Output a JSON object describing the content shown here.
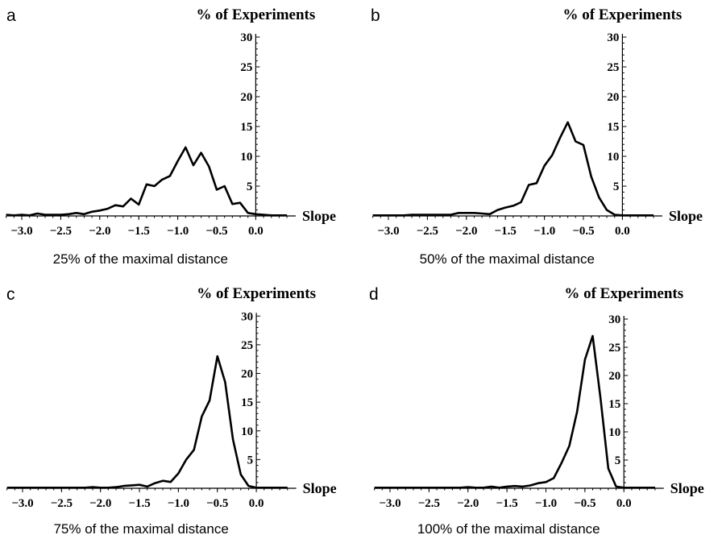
{
  "chart_data": [
    {
      "type": "line",
      "panel_label": "a",
      "ylabel": "% of Experiments",
      "xlabel": "Slope",
      "caption": "25% of the maximal distance",
      "xlim": [
        -3.2,
        0.45
      ],
      "ylim": [
        0,
        30
      ],
      "xticks": [
        "−3.0",
        "−2.5",
        "−2.0",
        "−1.5",
        "−1.0",
        "−0.5",
        "0.0"
      ],
      "yticks": [
        "5",
        "10",
        "15",
        "20",
        "25",
        "30"
      ],
      "x": [
        -3.2,
        -3.1,
        -3.0,
        -2.9,
        -2.8,
        -2.7,
        -2.6,
        -2.5,
        -2.4,
        -2.3,
        -2.2,
        -2.1,
        -2.0,
        -1.9,
        -1.8,
        -1.7,
        -1.6,
        -1.5,
        -1.4,
        -1.3,
        -1.2,
        -1.1,
        -1.0,
        -0.9,
        -0.8,
        -0.7,
        -0.6,
        -0.5,
        -0.4,
        -0.3,
        -0.2,
        -0.1,
        0.0,
        0.1,
        0.2,
        0.3,
        0.4
      ],
      "y": [
        0.2,
        0.1,
        0.2,
        0.1,
        0.4,
        0.2,
        0.2,
        0.2,
        0.3,
        0.5,
        0.3,
        0.7,
        0.9,
        1.2,
        1.8,
        1.6,
        2.9,
        1.9,
        5.3,
        5.0,
        6.1,
        6.7,
        9.2,
        11.5,
        8.5,
        10.6,
        8.3,
        4.4,
        5.0,
        2.0,
        2.2,
        0.5,
        0.3,
        0.2,
        0.1,
        0.1,
        0.1
      ]
    },
    {
      "type": "line",
      "panel_label": "b",
      "ylabel": "% of Experiments",
      "xlabel": "Slope",
      "caption": "50% of the maximal distance",
      "xlim": [
        -3.2,
        0.45
      ],
      "ylim": [
        0,
        30
      ],
      "xticks": [
        "−3.0",
        "−2.5",
        "−2.0",
        "−1.5",
        "−1.0",
        "−0.5",
        "0.0"
      ],
      "yticks": [
        "5",
        "10",
        "15",
        "20",
        "25",
        "30"
      ],
      "x": [
        -3.2,
        -3.1,
        -3.0,
        -2.9,
        -2.8,
        -2.7,
        -2.6,
        -2.5,
        -2.4,
        -2.3,
        -2.2,
        -2.1,
        -2.0,
        -1.9,
        -1.8,
        -1.7,
        -1.6,
        -1.5,
        -1.4,
        -1.3,
        -1.2,
        -1.1,
        -1.0,
        -0.9,
        -0.8,
        -0.7,
        -0.6,
        -0.5,
        -0.4,
        -0.3,
        -0.2,
        -0.1,
        0.0,
        0.1,
        0.2,
        0.3,
        0.4
      ],
      "y": [
        0.1,
        0.1,
        0.1,
        0.1,
        0.1,
        0.2,
        0.2,
        0.2,
        0.2,
        0.2,
        0.2,
        0.5,
        0.5,
        0.5,
        0.4,
        0.3,
        1.0,
        1.4,
        1.7,
        2.3,
        5.2,
        5.5,
        8.4,
        10.2,
        13.1,
        15.7,
        12.5,
        11.9,
        6.6,
        3.1,
        1.0,
        0.2,
        0.1,
        0.1,
        0.1,
        0.1,
        0.1
      ]
    },
    {
      "type": "line",
      "panel_label": "c",
      "ylabel": "% of Experiments",
      "xlabel": "Slope",
      "caption": "75% of the maximal distance",
      "xlim": [
        -3.2,
        0.45
      ],
      "ylim": [
        0,
        30
      ],
      "xticks": [
        "−3.0",
        "−2.5",
        "−2.0",
        "−1.5",
        "−1.0",
        "−0.5",
        "0.0"
      ],
      "yticks": [
        "5",
        "10",
        "15",
        "20",
        "25",
        "30"
      ],
      "x": [
        -3.2,
        -3.1,
        -3.0,
        -2.9,
        -2.8,
        -2.7,
        -2.6,
        -2.5,
        -2.4,
        -2.3,
        -2.2,
        -2.1,
        -2.0,
        -1.9,
        -1.8,
        -1.7,
        -1.6,
        -1.5,
        -1.4,
        -1.3,
        -1.2,
        -1.1,
        -1.0,
        -0.9,
        -0.8,
        -0.7,
        -0.6,
        -0.5,
        -0.4,
        -0.3,
        -0.2,
        -0.1,
        0.0,
        0.1,
        0.2,
        0.3,
        0.4
      ],
      "y": [
        0.1,
        0.1,
        0.1,
        0.1,
        0.1,
        0.1,
        0.1,
        0.1,
        0.1,
        0.1,
        0.1,
        0.2,
        0.1,
        0.1,
        0.2,
        0.4,
        0.5,
        0.6,
        0.3,
        0.9,
        1.3,
        1.1,
        2.6,
        5.0,
        6.7,
        12.5,
        15.3,
        23.0,
        18.5,
        8.5,
        2.4,
        0.4,
        0.1,
        0.1,
        0.1,
        0.1,
        0.1
      ]
    },
    {
      "type": "line",
      "panel_label": "d",
      "ylabel": "% of Experiments",
      "xlabel": "Slope",
      "caption": "100% of the maximal distance",
      "xlim": [
        -3.2,
        0.45
      ],
      "ylim": [
        0,
        30
      ],
      "xticks": [
        "−3.0",
        "−2.5",
        "−2.0",
        "−1.5",
        "−1.0",
        "−0.5",
        "0.0"
      ],
      "yticks": [
        "5",
        "10",
        "15",
        "20",
        "25",
        "30"
      ],
      "x": [
        -3.2,
        -3.1,
        -3.0,
        -2.9,
        -2.8,
        -2.7,
        -2.6,
        -2.5,
        -2.4,
        -2.3,
        -2.2,
        -2.1,
        -2.0,
        -1.9,
        -1.8,
        -1.7,
        -1.6,
        -1.5,
        -1.4,
        -1.3,
        -1.2,
        -1.1,
        -1.0,
        -0.9,
        -0.8,
        -0.7,
        -0.6,
        -0.5,
        -0.4,
        -0.3,
        -0.2,
        -0.1,
        0.0,
        0.1,
        0.2,
        0.3,
        0.4
      ],
      "y": [
        0.1,
        0.1,
        0.1,
        0.1,
        0.1,
        0.1,
        0.1,
        0.1,
        0.1,
        0.1,
        0.1,
        0.1,
        0.2,
        0.1,
        0.1,
        0.3,
        0.1,
        0.3,
        0.4,
        0.3,
        0.5,
        0.9,
        1.1,
        1.8,
        4.5,
        7.5,
        13.6,
        22.8,
        27.0,
        16.0,
        3.5,
        0.3,
        0.1,
        0.1,
        0.1,
        0.1,
        0.1
      ]
    }
  ]
}
